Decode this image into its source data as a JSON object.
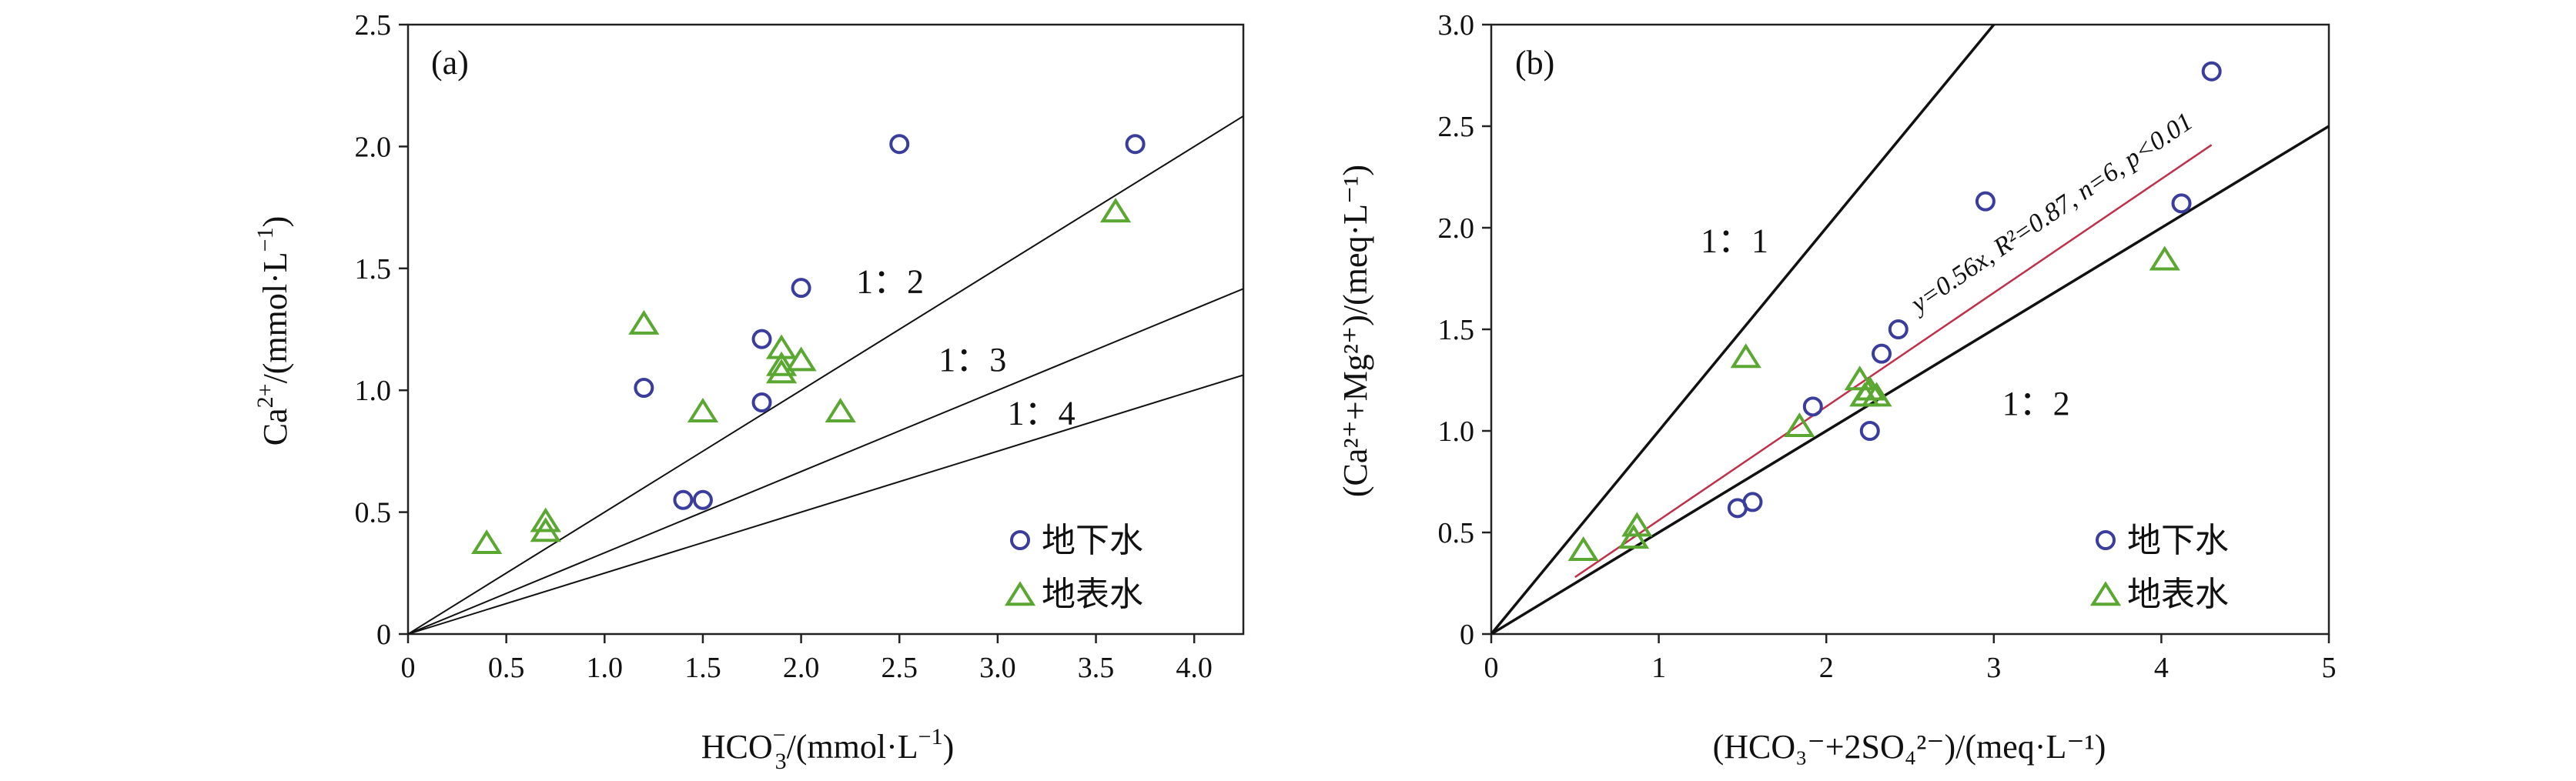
{
  "chart_data": [
    {
      "type": "scatter",
      "panel_label": "(a)",
      "xlabel": {
        "main": "HCO",
        "sub": "3",
        "sup": "−",
        "unit": "/(mmol·L",
        "unit_sup": "−1",
        "close": ")"
      },
      "ylabel": {
        "main": "Ca",
        "sup": "2+",
        "unit": "/(mmol·L",
        "unit_sup": "−1",
        "close": ")"
      },
      "xlim": [
        0,
        4.25
      ],
      "ylim": [
        0,
        2.5
      ],
      "xticks": [
        "0",
        "0.5",
        "1.0",
        "1.5",
        "2.0",
        "2.5",
        "3.0",
        "3.5",
        "4.0"
      ],
      "yticks": [
        "0",
        "0.5",
        "1.0",
        "1.5",
        "2.0",
        "2.5"
      ],
      "reference_lines": [
        {
          "label": "1：2",
          "slope": 0.5,
          "label_at": [
            2.28,
            1.4
          ]
        },
        {
          "label": "1：3",
          "slope": 0.3333,
          "label_at": [
            2.7,
            1.08
          ]
        },
        {
          "label": "1：4",
          "slope": 0.25,
          "label_at": [
            3.05,
            0.86
          ]
        }
      ],
      "series": [
        {
          "name": "地下水",
          "marker": "circle",
          "color": "#3a3d9c",
          "points": [
            [
              1.2,
              1.01
            ],
            [
              1.4,
              0.55
            ],
            [
              1.5,
              0.55
            ],
            [
              1.8,
              0.95
            ],
            [
              1.8,
              1.21
            ],
            [
              2.0,
              1.42
            ],
            [
              2.5,
              2.01
            ],
            [
              3.7,
              2.01
            ]
          ]
        },
        {
          "name": "地表水",
          "marker": "triangle",
          "color": "#5aa832",
          "points": [
            [
              0.4,
              0.37
            ],
            [
              0.7,
              0.46
            ],
            [
              0.7,
              0.42
            ],
            [
              1.2,
              1.27
            ],
            [
              1.5,
              0.91
            ],
            [
              1.9,
              1.17
            ],
            [
              1.9,
              1.1
            ],
            [
              1.9,
              1.07
            ],
            [
              2.0,
              1.12
            ],
            [
              2.2,
              0.91
            ],
            [
              3.6,
              1.73
            ]
          ]
        }
      ],
      "legend_position": "bottom-right"
    },
    {
      "type": "scatter",
      "panel_label": "(b)",
      "xlabel": {
        "text": "(HCO₃⁻+2SO₄²⁻)/(meq·L⁻¹)"
      },
      "ylabel": {
        "text": "(Ca²⁺+Mg²⁺)/(meq·L⁻¹)"
      },
      "xlim": [
        0,
        5
      ],
      "ylim": [
        0,
        3.0
      ],
      "xticks": [
        "0",
        "1",
        "2",
        "3",
        "4",
        "5"
      ],
      "yticks": [
        "0",
        "0.5",
        "1.0",
        "1.5",
        "2.0",
        "2.5",
        "3.0"
      ],
      "reference_lines": [
        {
          "label": "1：1",
          "slope": 1.0,
          "label_at": [
            1.25,
            1.88
          ]
        },
        {
          "label": "1：2",
          "slope": 0.5,
          "label_at": [
            3.05,
            1.08
          ]
        }
      ],
      "fit_line": {
        "slope": 0.56,
        "x_range": [
          0.5,
          4.3
        ],
        "color": "#c0304a",
        "label": "y=0.56x, R²=0.87, n=6, p<0.01"
      },
      "series": [
        {
          "name": "地下水",
          "marker": "circle",
          "color": "#3a3d9c",
          "points": [
            [
              1.47,
              0.62
            ],
            [
              1.56,
              0.65
            ],
            [
              1.92,
              1.12
            ],
            [
              2.26,
              1.0
            ],
            [
              2.33,
              1.38
            ],
            [
              2.43,
              1.5
            ],
            [
              2.95,
              2.13
            ],
            [
              4.12,
              2.12
            ],
            [
              4.3,
              2.77
            ]
          ]
        },
        {
          "name": "地表水",
          "marker": "triangle",
          "color": "#5aa832",
          "points": [
            [
              0.55,
              0.41
            ],
            [
              0.85,
              0.47
            ],
            [
              0.87,
              0.53
            ],
            [
              1.52,
              1.36
            ],
            [
              1.84,
              1.02
            ],
            [
              2.2,
              1.25
            ],
            [
              2.23,
              1.17
            ],
            [
              2.26,
              1.2
            ],
            [
              2.3,
              1.17
            ],
            [
              4.02,
              1.84
            ]
          ]
        }
      ],
      "legend_position": "bottom-right"
    }
  ]
}
